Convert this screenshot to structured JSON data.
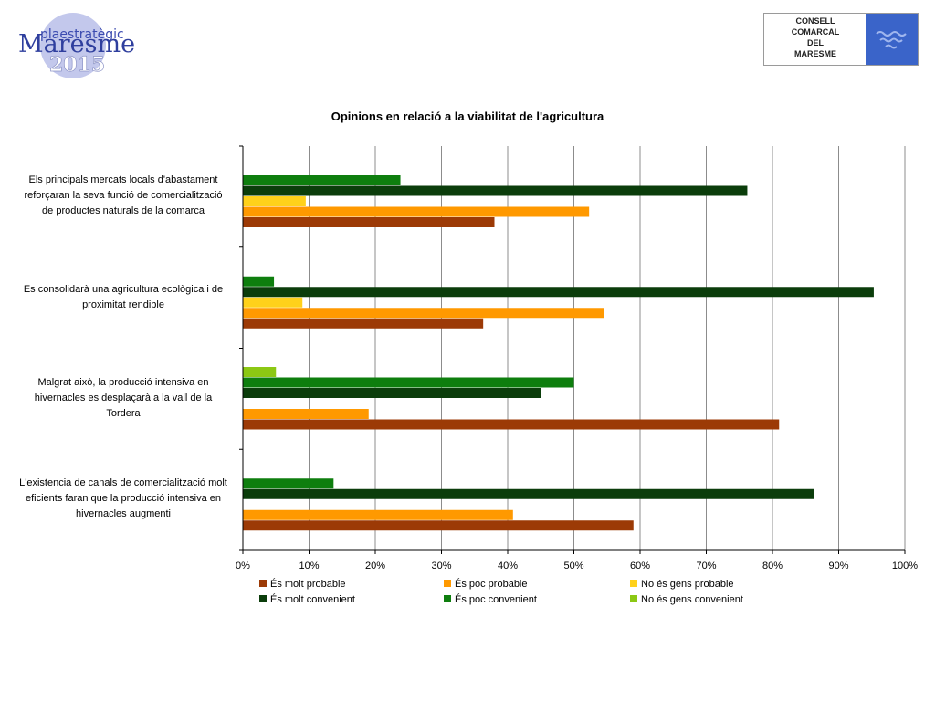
{
  "header": {
    "left_logo": {
      "line1": "plaestratègic",
      "line2": "Maresme",
      "line3": "2015"
    },
    "right_logo": {
      "lines": [
        "CONSELL",
        "COMARCAL",
        "DEL",
        "MARESME"
      ]
    }
  },
  "chart_data": {
    "type": "bar",
    "orientation": "horizontal",
    "title": "Opinions en relació a la viabilitat de l'agricultura",
    "categories": [
      "Els principals mercats locals d'abastament reforçaran la seva funció de comercialització de productes naturals de la comarca",
      "Es consolidarà una agricultura ecològica i de proximitat rendible",
      "Malgrat això, la producció intensiva en hivernacles es desplaçarà a la vall de la Tordera",
      "L'existencia de canals de comercialització molt eficients faran que la producció intensiva en hivernacles augmenti"
    ],
    "category_display_lines": [
      [
        "Els principals mercats locals d'abastament",
        "reforçaran la seva funció de comercialització",
        "de productes naturals de la comarca"
      ],
      [
        "Es consolidarà una agricultura ecològica i de",
        "proximitat rendible"
      ],
      [
        "Malgrat això, la producció intensiva en",
        "hivernacles es desplaçarà a la vall de la",
        "Tordera"
      ],
      [
        "L'existencia de canals de comercialització molt",
        "eficients faran que la producció intensiva en",
        "hivernacles augmenti"
      ]
    ],
    "series": [
      {
        "name": "És molt probable",
        "color": "#9c3a06",
        "values": [
          38,
          36.3,
          81,
          59
        ]
      },
      {
        "name": "És poc probable",
        "color": "#ff9900",
        "values": [
          52.3,
          54.5,
          19,
          40.8
        ]
      },
      {
        "name": "No és gens probable",
        "color": "#ffd11a",
        "values": [
          9.5,
          9,
          0,
          0
        ]
      },
      {
        "name": "És molt convenient",
        "color": "#0b3d0b",
        "values": [
          76.2,
          95.3,
          45,
          86.3
        ]
      },
      {
        "name": "És poc convenient",
        "color": "#0e7e0e",
        "values": [
          23.8,
          4.7,
          50,
          13.7
        ]
      },
      {
        "name": "No és gens convenient",
        "color": "#8cc814",
        "values": [
          0,
          0,
          5,
          0
        ]
      }
    ],
    "xlim": [
      0,
      100
    ],
    "x_ticks": [
      "0%",
      "10%",
      "20%",
      "30%",
      "40%",
      "50%",
      "60%",
      "70%",
      "80%",
      "90%",
      "100%"
    ],
    "grid": true,
    "legend_position": "bottom"
  }
}
